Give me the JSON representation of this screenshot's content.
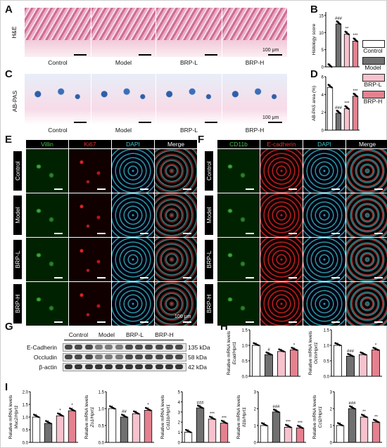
{
  "panels": {
    "A": "A",
    "B": "B",
    "C": "C",
    "D": "D",
    "E": "E",
    "F": "F",
    "G": "G",
    "H": "H",
    "I": "I"
  },
  "groups": [
    "Control",
    "Model",
    "BRP-L",
    "BRP-H"
  ],
  "stains": {
    "he": "H&E",
    "pas": "AB-PAS"
  },
  "scale": {
    "he": "100 μm",
    "pas": "100 μm",
    "if_e": "100 μm"
  },
  "if_e_headers": [
    "Villin",
    "Ki67",
    "DAPI",
    "Merge"
  ],
  "if_f_headers": [
    "CD11b",
    "E-cadherin",
    "DAPI",
    "Merge"
  ],
  "if_header_colors": [
    "#46c246",
    "#e83030",
    "#3fc4cc",
    "#ffffff"
  ],
  "legend": {
    "items": [
      "Control",
      "Model",
      "BRP-L",
      "BRP-H"
    ],
    "colors": [
      "#ffffff",
      "#707070",
      "#f6c2cd",
      "#e5818f"
    ]
  },
  "chart_data": [
    {
      "id": "B",
      "type": "bar",
      "ylabel": "Histology score",
      "categories": [
        "Control",
        "Model",
        "BRP-L",
        "BRP-H"
      ],
      "values": [
        0,
        12.5,
        9.5,
        7.5
      ],
      "ylim": [
        0,
        16
      ],
      "yticks": [
        0,
        5,
        10,
        15
      ],
      "annotations": [
        "",
        "###",
        "**",
        "***"
      ]
    },
    {
      "id": "D",
      "type": "bar",
      "ylabel": "AB-PAS area (%)",
      "categories": [
        "Control",
        "Model",
        "BRP-L",
        "BRP-H"
      ],
      "values": [
        4.8,
        1.9,
        2.4,
        3.8
      ],
      "ylim": [
        0,
        6
      ],
      "yticks": [
        0,
        2,
        4,
        6
      ],
      "annotations": [
        "",
        "###",
        "***",
        "***"
      ]
    },
    {
      "id": "H1",
      "type": "bar",
      "ylabel": "Relative mRNA levels",
      "ylabel2": "Ecad/Hprt1",
      "categories": [
        "Control",
        "Model",
        "BRP-L",
        "BRP-H"
      ],
      "values": [
        1.0,
        0.7,
        0.8,
        0.85
      ],
      "ylim": [
        0,
        1.5
      ],
      "yticks": [
        0.0,
        0.5,
        1.0,
        1.5
      ],
      "annotations": [
        "",
        "#",
        "",
        "*"
      ]
    },
    {
      "id": "H2",
      "type": "bar",
      "ylabel": "Relative mRNA levels",
      "ylabel2": "Ocln/Hprt1",
      "categories": [
        "Control",
        "Model",
        "BRP-L",
        "BRP-H"
      ],
      "values": [
        1.0,
        0.65,
        0.7,
        0.85
      ],
      "ylim": [
        0,
        1.5
      ],
      "yticks": [
        0.0,
        0.5,
        1.0,
        1.5
      ],
      "annotations": [
        "",
        "###",
        "",
        "*"
      ]
    },
    {
      "id": "I1",
      "type": "bar",
      "ylabel": "Relative mRNA levels",
      "ylabel2": "Muc2/Hprt1",
      "categories": [
        "Control",
        "Model",
        "BRP-L",
        "BRP-H"
      ],
      "values": [
        1.0,
        0.75,
        1.05,
        1.25
      ],
      "ylim": [
        0,
        2.0
      ],
      "yticks": [
        0.0,
        0.5,
        1.0,
        1.5,
        2.0
      ],
      "annotations": [
        "",
        "",
        "*",
        "*"
      ]
    },
    {
      "id": "I2",
      "type": "bar",
      "ylabel": "Relative mRNA levels",
      "ylabel2": "Zo1/Hprt1",
      "categories": [
        "Control",
        "Model",
        "BRP-L",
        "BRP-H"
      ],
      "values": [
        1.0,
        0.75,
        0.85,
        0.95
      ],
      "ylim": [
        0,
        1.5
      ],
      "yticks": [
        0.0,
        0.5,
        1.0,
        1.5
      ],
      "annotations": [
        "",
        "##",
        "",
        "*"
      ]
    },
    {
      "id": "I3",
      "type": "bar",
      "ylabel": "Relative mRNA levels",
      "ylabel2": "Cd11b/Hprt1",
      "categories": [
        "Control",
        "Model",
        "BRP-L",
        "BRP-H"
      ],
      "values": [
        1.0,
        3.4,
        2.3,
        1.9
      ],
      "ylim": [
        0,
        5
      ],
      "yticks": [
        0,
        1,
        2,
        3,
        4,
        5
      ],
      "annotations": [
        "",
        "###",
        "***",
        "***"
      ]
    },
    {
      "id": "I4",
      "type": "bar",
      "ylabel": "Relative mRNA levels",
      "ylabel2": "Il1b/Hprt1",
      "categories": [
        "Control",
        "Model",
        "BRP-L",
        "BRP-H"
      ],
      "values": [
        1.0,
        1.8,
        0.9,
        0.85
      ],
      "ylim": [
        0,
        3
      ],
      "yticks": [
        0,
        1,
        2,
        3
      ],
      "annotations": [
        "",
        "###",
        "***",
        "***"
      ]
    },
    {
      "id": "I5",
      "type": "bar",
      "ylabel": "Relative mRNA levels",
      "ylabel2": "Ccl2/Hprt1",
      "categories": [
        "Control",
        "Model",
        "BRP-L",
        "BRP-H"
      ],
      "values": [
        1.0,
        2.0,
        1.5,
        1.2
      ],
      "ylim": [
        0,
        3
      ],
      "yticks": [
        0,
        1,
        2,
        3
      ],
      "annotations": [
        "",
        "###",
        "**",
        "**"
      ]
    }
  ],
  "blot": {
    "lanes_labels": [
      "Control",
      "Model",
      "BRP-L",
      "BRP-H"
    ],
    "rows": [
      {
        "name": "E-Cadherin",
        "kda": "135 kDa"
      },
      {
        "name": "Occludin",
        "kda": "58 kDa"
      },
      {
        "name": "β-actin",
        "kda": "42 kDa"
      }
    ]
  }
}
